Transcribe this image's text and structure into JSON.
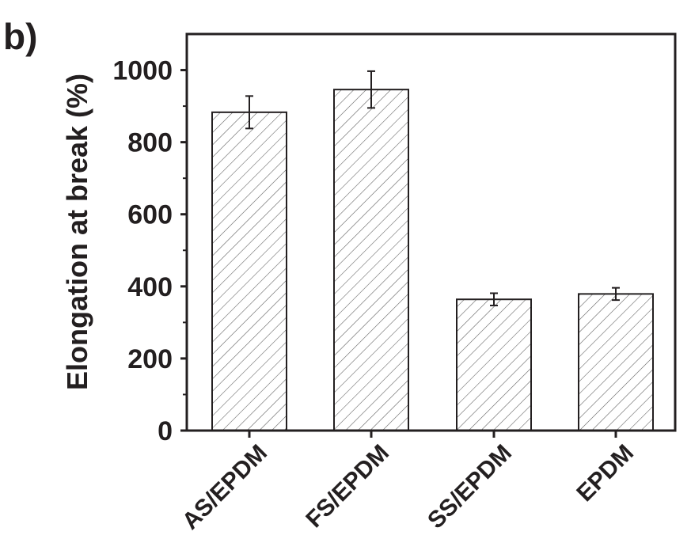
{
  "panel_label": "b)",
  "chart_data": {
    "type": "bar",
    "title": "",
    "xlabel": "",
    "ylabel": "Elongation at break (%)",
    "ylim": [
      0,
      1100
    ],
    "yticks": [
      0,
      200,
      400,
      600,
      800,
      1000
    ],
    "categories": [
      "AS/EPDM",
      "FS/EPDM",
      "SS/EPDM",
      "EPDM"
    ],
    "series": [
      {
        "values": [
          883,
          946,
          364,
          379
        ],
        "errors": [
          45,
          51,
          17,
          17
        ]
      }
    ],
    "bar_fill": "hatched",
    "grid": false,
    "legend": "none"
  }
}
